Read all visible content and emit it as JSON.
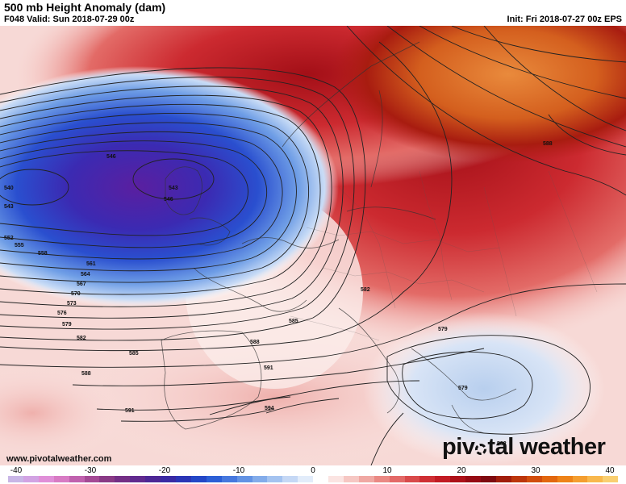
{
  "header": {
    "title": "500 mb Height Anomaly (dam)",
    "valid": "F048 Valid: Sun 2018-07-29 00z",
    "init": "Init: Fri 2018-07-27 00z EPS"
  },
  "footer": {
    "website": "www.pivotalweather.com",
    "brand_left": "piv",
    "brand_right": "tal weather"
  },
  "colorbar": {
    "ticks": [
      "-40",
      "-30",
      "-20",
      "-10",
      "0",
      "10",
      "20",
      "30",
      "40"
    ],
    "colors": [
      "#c9b6e6",
      "#d2a3e3",
      "#e08fd8",
      "#d87bc4",
      "#c061ae",
      "#a44a95",
      "#8a3a86",
      "#742f86",
      "#612a8f",
      "#4d2796",
      "#3a2aa4",
      "#2b35b6",
      "#2447c7",
      "#2c5fd6",
      "#4678de",
      "#6393e4",
      "#83acea",
      "#a4c3f0",
      "#c5d8f5",
      "#e2ecfa",
      "#ffffff",
      "#fbe4e2",
      "#f6c7c3",
      "#f0a8a3",
      "#ea8984",
      "#e36967",
      "#d94a4b",
      "#cf2f34",
      "#c21b24",
      "#ad1119",
      "#960b14",
      "#7f0a10",
      "#a11e0c",
      "#bc360c",
      "#d14d0d",
      "#e2670f",
      "#ee8318",
      "#f49e30",
      "#f8b84d",
      "#f9cf71"
    ]
  },
  "contours": [
    {
      "label": "540"
    },
    {
      "label": "543"
    },
    {
      "label": "546"
    },
    {
      "label": "543"
    },
    {
      "label": "546"
    },
    {
      "label": "552"
    },
    {
      "label": "555"
    },
    {
      "label": "558"
    },
    {
      "label": "561"
    },
    {
      "label": "564"
    },
    {
      "label": "567"
    },
    {
      "label": "570"
    },
    {
      "label": "573"
    },
    {
      "label": "576"
    },
    {
      "label": "579"
    },
    {
      "label": "582"
    },
    {
      "label": "585"
    },
    {
      "label": "588"
    },
    {
      "label": "588"
    },
    {
      "label": "591"
    },
    {
      "label": "591"
    },
    {
      "label": "594"
    },
    {
      "label": "588"
    },
    {
      "label": "582"
    },
    {
      "label": "585"
    },
    {
      "label": "579"
    },
    {
      "label": "579"
    },
    {
      "label": "582"
    }
  ]
}
